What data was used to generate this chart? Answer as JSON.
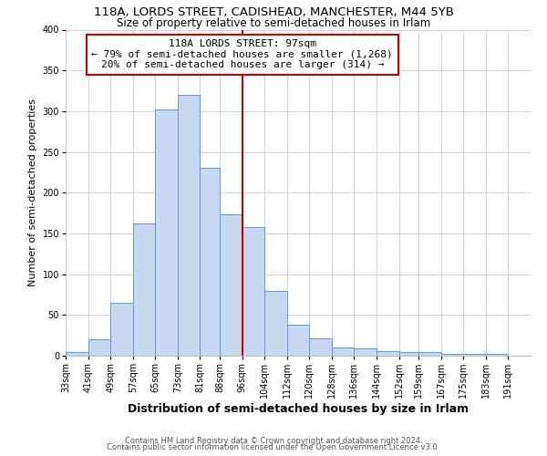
{
  "title1": "118A, LORDS STREET, CADISHEAD, MANCHESTER, M44 5YB",
  "title2": "Size of property relative to semi-detached houses in Irlam",
  "xlabel": "Distribution of semi-detached houses by size in Irlam",
  "ylabel": "Number of semi-detached properties",
  "footer1": "Contains HM Land Registry data © Crown copyright and database right 2024.",
  "footer2": "Contains public sector information licensed under the Open Government Licence v3.0.",
  "bin_labels": [
    "33sqm",
    "41sqm",
    "49sqm",
    "57sqm",
    "65sqm",
    "73sqm",
    "81sqm",
    "88sqm",
    "96sqm",
    "104sqm",
    "112sqm",
    "120sqm",
    "128sqm",
    "136sqm",
    "144sqm",
    "152sqm",
    "159sqm",
    "167sqm",
    "175sqm",
    "183sqm",
    "191sqm"
  ],
  "bar_heights": [
    5,
    20,
    65,
    162,
    302,
    320,
    230,
    173,
    158,
    80,
    38,
    21,
    10,
    9,
    6,
    5,
    4,
    2,
    2,
    2
  ],
  "bar_color": "#c6d9f1",
  "bar_edge_color": "#5b9bd5",
  "annotation_label": "118A LORDS STREET: 97sqm",
  "annotation_line1": "← 79% of semi-detached houses are smaller (1,268)",
  "annotation_line2": "20% of semi-detached houses are larger (314) →",
  "marker_line_color": "#cc0000",
  "annotation_box_edge_color": "#cc0000",
  "ylim": [
    0,
    400
  ],
  "yticks": [
    0,
    50,
    100,
    150,
    200,
    250,
    300,
    350,
    400
  ],
  "bg_color": "#ffffff",
  "grid_color": "#c8d4e8",
  "title1_fontsize": 9.5,
  "title2_fontsize": 8.5,
  "xlabel_fontsize": 9,
  "ylabel_fontsize": 8,
  "tick_fontsize": 7,
  "annotation_fontsize": 8,
  "footer_fontsize": 6
}
